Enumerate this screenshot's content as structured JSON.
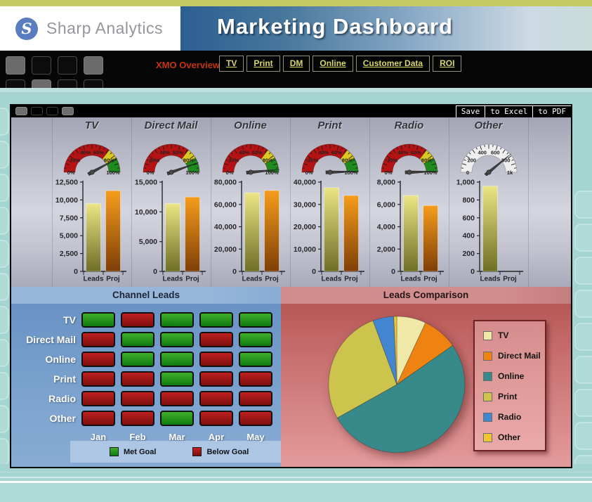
{
  "brand": {
    "name": "Sharp Analytics"
  },
  "header": {
    "title": "Marketing Dashboard"
  },
  "nav": {
    "overview_label": "XMO Overview",
    "tabs": [
      "TV",
      "Print",
      "DM",
      "Online",
      "Customer Data",
      "ROI"
    ]
  },
  "toolbar": {
    "buttons": [
      "Save",
      "to Excel",
      "to PDF"
    ]
  },
  "colors": {
    "met_green": "#1f9a1f",
    "below_red": "#a81414",
    "leads_bar_top": "#ebe584",
    "leads_bar_bottom": "#6e6e26",
    "proj_bar_top": "#f59d1c",
    "proj_bar_bottom": "#7e3e06",
    "gauge_red": "#b51313",
    "gauge_yellow": "#d8ca22",
    "gauge_green": "#1d8b1d",
    "page_teal": "#a5d5d0"
  },
  "chart_data": [
    {
      "type": "bar",
      "name": "channel-gauge-and-bar-columns",
      "categories": [
        "Leads",
        "Proj"
      ],
      "channels": [
        {
          "title": "TV",
          "gauge": {
            "value": 84,
            "max": 100,
            "labels": [
              "0%",
              "20%",
              "40%",
              "60%",
              "80%",
              "100%"
            ],
            "zones": [
              {
                "to": 0.71,
                "color": "#b51313"
              },
              {
                "to": 0.83,
                "color": "#d8ca22"
              },
              {
                "to": 1,
                "color": "#1d8b1d"
              }
            ]
          },
          "axis": {
            "max": 12500,
            "ticks": [
              "0",
              "2,500",
              "5,000",
              "7,500",
              "10,000",
              "12,500"
            ]
          },
          "leads": 9500,
          "proj": 11300
        },
        {
          "title": "Direct Mail",
          "gauge": {
            "value": 89,
            "max": 100,
            "labels": [
              "0%",
              "20%",
              "40%",
              "60%",
              "80%",
              "100%"
            ],
            "zones": [
              {
                "to": 0.71,
                "color": "#b51313"
              },
              {
                "to": 0.83,
                "color": "#d8ca22"
              },
              {
                "to": 1,
                "color": "#1d8b1d"
              }
            ]
          },
          "axis": {
            "max": 15000,
            "ticks": [
              "0",
              "5,000",
              "10,000",
              "15,000"
            ]
          },
          "leads": 11400,
          "proj": 12500
        },
        {
          "title": "Online",
          "gauge": {
            "value": 97,
            "max": 100,
            "labels": [
              "0%",
              "20%",
              "40%",
              "60%",
              "80%",
              "100%"
            ],
            "zones": [
              {
                "to": 0.71,
                "color": "#b51313"
              },
              {
                "to": 0.83,
                "color": "#d8ca22"
              },
              {
                "to": 1,
                "color": "#1d8b1d"
              }
            ]
          },
          "axis": {
            "max": 80000,
            "ticks": [
              "0",
              "20,000",
              "40,000",
              "60,000",
              "80,000"
            ]
          },
          "leads": 70500,
          "proj": 72500
        },
        {
          "title": "Print",
          "gauge": {
            "value": 99,
            "max": 100,
            "labels": [
              "0%",
              "20%",
              "40%",
              "60%",
              "80%",
              "100%"
            ],
            "zones": [
              {
                "to": 0.71,
                "color": "#b51313"
              },
              {
                "to": 0.83,
                "color": "#d8ca22"
              },
              {
                "to": 1,
                "color": "#1d8b1d"
              }
            ]
          },
          "axis": {
            "max": 40000,
            "ticks": [
              "0",
              "10,000",
              "20,000",
              "30,000",
              "40,000"
            ]
          },
          "leads": 37500,
          "proj": 34000
        },
        {
          "title": "Radio",
          "gauge": {
            "value": 99,
            "max": 100,
            "labels": [
              "0%",
              "20%",
              "40%",
              "60%",
              "80%",
              "100%"
            ],
            "zones": [
              {
                "to": 0.71,
                "color": "#b51313"
              },
              {
                "to": 0.83,
                "color": "#d8ca22"
              },
              {
                "to": 1,
                "color": "#1d8b1d"
              }
            ]
          },
          "axis": {
            "max": 8000,
            "ticks": [
              "0",
              "2,000",
              "4,000",
              "6,000",
              "8,000"
            ]
          },
          "leads": 6800,
          "proj": 5900
        },
        {
          "title": "Other",
          "gauge": {
            "value": 780,
            "max": 1000,
            "labels": [
              "0",
              "200",
              "400",
              "600",
              "800",
              "1k"
            ],
            "zones": [
              {
                "to": 1,
                "color": "#efefef"
              }
            ],
            "face": "silver"
          },
          "axis": {
            "max": 1000,
            "ticks": [
              "0",
              "200",
              "400",
              "600",
              "800",
              "1,000"
            ]
          },
          "leads": 955,
          "proj": 0
        }
      ]
    },
    {
      "type": "heatmap",
      "title": "Channel Leads",
      "columns": [
        "Jan",
        "Feb",
        "Mar",
        "Apr",
        "May"
      ],
      "rows": [
        {
          "label": "TV",
          "values": [
            "met",
            "below",
            "met",
            "met",
            "met"
          ]
        },
        {
          "label": "Direct Mail",
          "values": [
            "below",
            "met",
            "met",
            "below",
            "met"
          ]
        },
        {
          "label": "Online",
          "values": [
            "below",
            "met",
            "met",
            "below",
            "met"
          ]
        },
        {
          "label": "Print",
          "values": [
            "below",
            "below",
            "met",
            "below",
            "below"
          ]
        },
        {
          "label": "Radio",
          "values": [
            "below",
            "below",
            "below",
            "below",
            "below"
          ]
        },
        {
          "label": "Other",
          "values": [
            "below",
            "below",
            "met",
            "below",
            "below"
          ]
        }
      ],
      "legend": {
        "met": "Met Goal",
        "below": "Below Goal"
      }
    },
    {
      "type": "pie",
      "title": "Leads Comparison",
      "labels": [
        "TV",
        "Direct Mail",
        "Online",
        "Print",
        "Radio",
        "Other"
      ],
      "values": [
        9500,
        11400,
        70500,
        37500,
        6800,
        955
      ],
      "colors": [
        "#efe8a6",
        "#ef8312",
        "#37898a",
        "#cdc44e",
        "#4286d0",
        "#eec62f"
      ],
      "legend_position": "right"
    }
  ]
}
